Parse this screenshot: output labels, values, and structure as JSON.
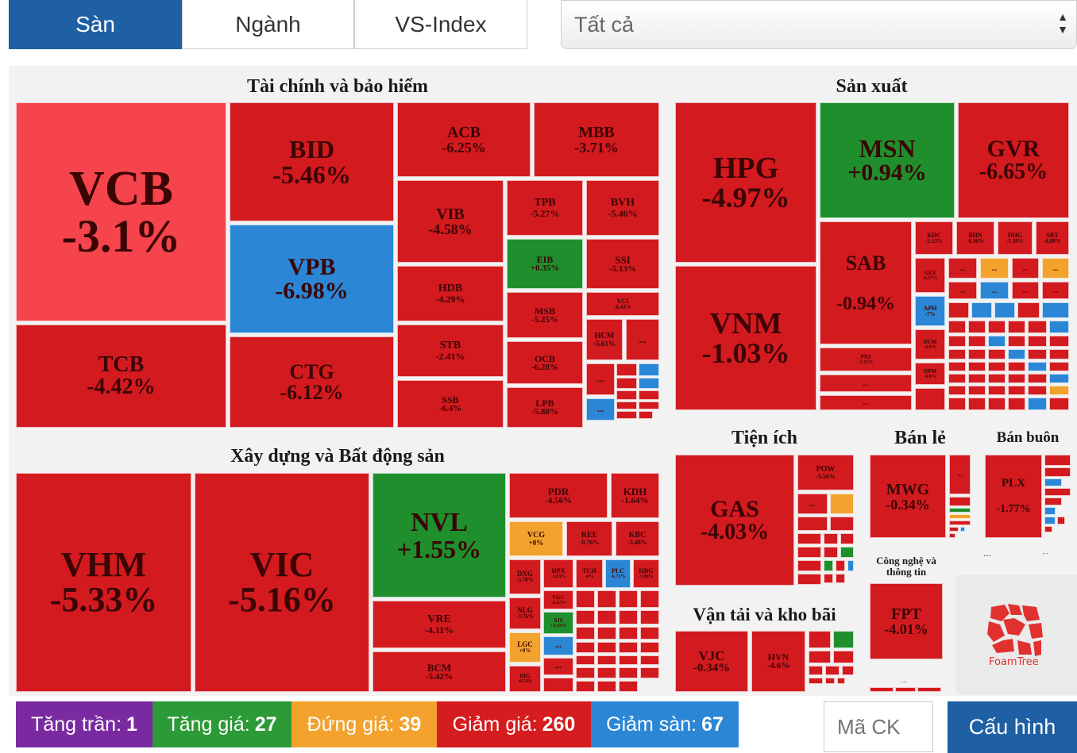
{
  "tabs": [
    {
      "label": "Sàn",
      "active": true
    },
    {
      "label": "Ngành",
      "active": false
    },
    {
      "label": "VS-Index",
      "active": false
    }
  ],
  "filter": {
    "selected": "Tất cả"
  },
  "groups": {
    "finance": "Tài chính và bảo hiểm",
    "construction": "Xây dựng và Bất động sản",
    "manufacturing": "Sản xuất",
    "utilities": "Tiện ích",
    "retail": "Bán lẻ",
    "wholesale": "Bán buôn",
    "transport": "Vận tải và kho bãi",
    "it": "Công nghệ và thông tin"
  },
  "more": "...",
  "stocks": [
    {
      "ticker": "VCB",
      "change": "-3.1%"
    },
    {
      "ticker": "BID",
      "change": "-5.46%"
    },
    {
      "ticker": "VPB",
      "change": "-6.98%"
    },
    {
      "ticker": "TCB",
      "change": "-4.42%"
    },
    {
      "ticker": "CTG",
      "change": "-6.12%"
    },
    {
      "ticker": "ACB",
      "change": "-6.25%"
    },
    {
      "ticker": "MBB",
      "change": "-3.71%"
    },
    {
      "ticker": "VIB",
      "change": "-4.58%"
    },
    {
      "ticker": "TPB",
      "change": "-5.27%"
    },
    {
      "ticker": "BVH",
      "change": "-5.46%"
    },
    {
      "ticker": "EIB",
      "change": "+0.35%"
    },
    {
      "ticker": "SSI",
      "change": "-5.13%"
    },
    {
      "ticker": "HDB",
      "change": "-4.29%"
    },
    {
      "ticker": "MSB",
      "change": "-5.25%"
    },
    {
      "ticker": "STB",
      "change": "-2.41%"
    },
    {
      "ticker": "OCB",
      "change": "-6.28%"
    },
    {
      "ticker": "SSB",
      "change": "-6.4%"
    },
    {
      "ticker": "LPB",
      "change": "-5.88%"
    },
    {
      "ticker": "VCI",
      "change": "-6.43%"
    },
    {
      "ticker": "HCM",
      "change": "-5.61%"
    },
    {
      "ticker": "VHM",
      "change": "-5.33%"
    },
    {
      "ticker": "VIC",
      "change": "-5.16%"
    },
    {
      "ticker": "NVL",
      "change": "+1.55%"
    },
    {
      "ticker": "VRE",
      "change": "-4.11%"
    },
    {
      "ticker": "BCM",
      "change": "-5.42%"
    },
    {
      "ticker": "PDR",
      "change": "-4.56%"
    },
    {
      "ticker": "KDH",
      "change": "-1.64%"
    },
    {
      "ticker": "VCG",
      "change": "+0%"
    },
    {
      "ticker": "REE",
      "change": "-0.76%"
    },
    {
      "ticker": "KBC",
      "change": "-3.48%"
    },
    {
      "ticker": "DXG",
      "change": "-3.78%"
    },
    {
      "ticker": "HPX",
      "change": "-3.83%"
    },
    {
      "ticker": "TCH",
      "change": "-6%"
    },
    {
      "ticker": "PLC",
      "change": "-6.71%"
    },
    {
      "ticker": "HDG",
      "change": "-5.89%"
    },
    {
      "ticker": "VGC",
      "change": "-2.12%"
    },
    {
      "ticker": "NLG",
      "change": "-3.76%"
    },
    {
      "ticker": "SJS",
      "change": "+3.53%"
    },
    {
      "ticker": "LGC",
      "change": "+0%"
    },
    {
      "ticker": "DIG",
      "change": "-6.74%"
    },
    {
      "ticker": "HPG",
      "change": "-4.97%"
    },
    {
      "ticker": "MSN",
      "change": "+0.94%"
    },
    {
      "ticker": "GVR",
      "change": "-6.65%"
    },
    {
      "ticker": "VNM",
      "change": "-1.03%"
    },
    {
      "ticker": "SAB",
      "change": "-0.94%"
    },
    {
      "ticker": "KDC",
      "change": "-2.13%"
    },
    {
      "ticker": "BHN",
      "change": "-6.36%"
    },
    {
      "ticker": "DHG",
      "change": "-1.39%"
    },
    {
      "ticker": "SBT",
      "change": "-6.88%"
    },
    {
      "ticker": "GEX",
      "change": "-6.17%"
    },
    {
      "ticker": "APH",
      "change": "-7%"
    },
    {
      "ticker": "DCM",
      "change": "-6.8%"
    },
    {
      "ticker": "DPM",
      "change": "-6.6%"
    },
    {
      "ticker": "PNJ",
      "change": "-3.12%"
    },
    {
      "ticker": "GAS",
      "change": "-4.03%"
    },
    {
      "ticker": "POW",
      "change": "-5.56%"
    },
    {
      "ticker": "MWG",
      "change": "-0.34%"
    },
    {
      "ticker": "PLX",
      "change": "-1.77%"
    },
    {
      "ticker": "VJC",
      "change": "-0.34%"
    },
    {
      "ticker": "HVN",
      "change": "-4.6%"
    },
    {
      "ticker": "FPT",
      "change": "-4.01%"
    }
  ],
  "legend": [
    {
      "label": "Tăng trần:",
      "count": "1",
      "color": "#7a2aa0"
    },
    {
      "label": "Tăng giá:",
      "count": "27",
      "color": "#2c9a37"
    },
    {
      "label": "Đứng giá:",
      "count": "39",
      "color": "#f2a22d"
    },
    {
      "label": "Giảm giá:",
      "count": "260",
      "color": "#d51c1f"
    },
    {
      "label": "Giảm sàn:",
      "count": "67",
      "color": "#2b86d6"
    }
  ],
  "search": {
    "placeholder": "Mã CK"
  },
  "config_button": "Cấu hình",
  "brand": "FoamTree",
  "colors": {
    "decrease": "#d21a1f",
    "increase": "#1e8f2c",
    "floor": "#2b86d6",
    "reference": "#f2a22d",
    "ceiling": "#7a2aa0",
    "light_decrease": "#f5444b",
    "accent": "#1f5fa3"
  }
}
